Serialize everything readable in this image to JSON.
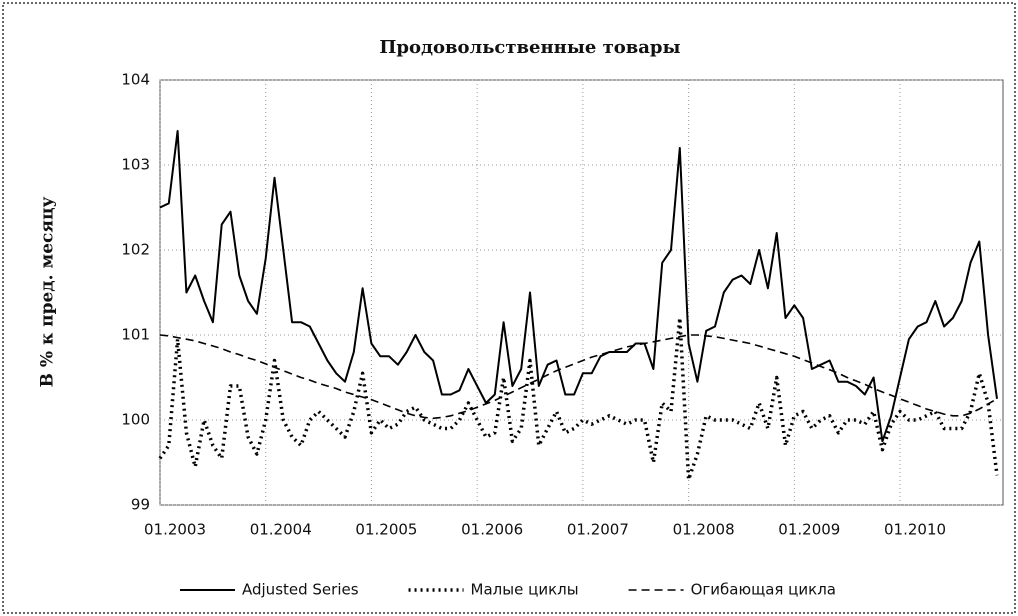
{
  "chart_data": {
    "type": "line",
    "title": "Продовольственные товары",
    "y_label": "В % к пред. месяцу",
    "categories": [
      "01.2003",
      null,
      null,
      null,
      null,
      null,
      null,
      null,
      null,
      null,
      null,
      null,
      "01.2004",
      null,
      null,
      null,
      null,
      null,
      null,
      null,
      null,
      null,
      null,
      null,
      "01.2005",
      null,
      null,
      null,
      null,
      null,
      null,
      null,
      null,
      null,
      null,
      null,
      "01.2006",
      null,
      null,
      null,
      null,
      null,
      null,
      null,
      null,
      null,
      null,
      null,
      "01.2007",
      null,
      null,
      null,
      null,
      null,
      null,
      null,
      null,
      null,
      null,
      null,
      "01.2008",
      null,
      null,
      null,
      null,
      null,
      null,
      null,
      null,
      null,
      null,
      null,
      "01.2009",
      null,
      null,
      null,
      null,
      null,
      null,
      null,
      null,
      null,
      null,
      null,
      "01.2010",
      null,
      null,
      null,
      null,
      null,
      null,
      null,
      null,
      null,
      null,
      null
    ],
    "series": [
      {
        "name": "Adjusted Series",
        "color": "#000000",
        "style": "solid",
        "values": [
          102.5,
          102.55,
          103.4,
          101.5,
          101.7,
          101.4,
          101.15,
          102.3,
          102.45,
          101.7,
          101.4,
          101.25,
          101.9,
          102.85,
          102.0,
          101.15,
          101.15,
          101.1,
          100.9,
          100.7,
          100.55,
          100.45,
          100.8,
          101.55,
          100.9,
          100.75,
          100.75,
          100.65,
          100.8,
          101.0,
          100.8,
          100.7,
          100.3,
          100.3,
          100.35,
          100.6,
          100.4,
          100.2,
          100.3,
          101.15,
          100.4,
          100.6,
          101.5,
          100.4,
          100.65,
          100.7,
          100.3,
          100.3,
          100.55,
          100.55,
          100.75,
          100.8,
          100.8,
          100.8,
          100.9,
          100.9,
          100.6,
          101.85,
          102.0,
          103.2,
          100.9,
          100.45,
          101.05,
          101.1,
          101.5,
          101.65,
          101.7,
          101.6,
          102.0,
          101.55,
          102.2,
          101.2,
          101.35,
          101.2,
          100.6,
          100.65,
          100.7,
          100.45,
          100.45,
          100.4,
          100.3,
          100.5,
          99.75,
          100.05,
          100.5,
          100.95,
          101.1,
          101.15,
          101.4,
          101.1,
          101.2,
          101.4,
          101.85,
          102.1,
          101.0,
          100.25
        ]
      },
      {
        "name": "Малые циклы",
        "color": "#000000",
        "style": "dotted",
        "values": [
          99.55,
          99.7,
          100.95,
          99.85,
          99.45,
          100.0,
          99.7,
          99.55,
          100.4,
          100.4,
          99.8,
          99.6,
          100.0,
          100.7,
          100.0,
          99.8,
          99.7,
          100.0,
          100.1,
          100.0,
          99.9,
          99.8,
          100.1,
          100.55,
          99.85,
          100.0,
          99.9,
          99.95,
          100.1,
          100.15,
          100.0,
          99.95,
          99.9,
          99.9,
          100.0,
          100.2,
          100.0,
          99.8,
          99.85,
          100.5,
          99.75,
          99.9,
          100.7,
          99.7,
          99.9,
          100.1,
          99.85,
          99.9,
          100.0,
          99.95,
          100.0,
          100.05,
          100.0,
          99.95,
          100.0,
          100.0,
          99.5,
          100.2,
          100.1,
          101.2,
          99.3,
          99.6,
          100.05,
          100.0,
          100.0,
          100.0,
          99.95,
          99.9,
          100.2,
          99.9,
          100.5,
          99.7,
          100.05,
          100.1,
          99.9,
          100.0,
          100.05,
          99.85,
          100.0,
          100.0,
          99.95,
          100.1,
          99.65,
          99.95,
          100.1,
          100.0,
          100.0,
          100.05,
          100.1,
          99.9,
          99.9,
          99.9,
          100.1,
          100.55,
          100.2,
          99.35
        ]
      },
      {
        "name": "Огибающая цикла",
        "color": "#000000",
        "style": "dashed",
        "values": [
          101.0,
          100.99,
          100.97,
          100.95,
          100.93,
          100.9,
          100.87,
          100.84,
          100.8,
          100.77,
          100.73,
          100.7,
          100.66,
          100.62,
          100.58,
          100.54,
          100.5,
          100.47,
          100.43,
          100.4,
          100.37,
          100.33,
          100.3,
          100.27,
          100.24,
          100.2,
          100.16,
          100.12,
          100.08,
          100.05,
          100.03,
          100.02,
          100.03,
          100.05,
          100.08,
          100.11,
          100.15,
          100.19,
          100.23,
          100.28,
          100.33,
          100.38,
          100.43,
          100.48,
          100.53,
          100.58,
          100.62,
          100.66,
          100.7,
          100.74,
          100.77,
          100.8,
          100.83,
          100.86,
          100.88,
          100.9,
          100.92,
          100.94,
          100.96,
          100.98,
          101.0,
          101.0,
          100.99,
          100.98,
          100.96,
          100.94,
          100.92,
          100.9,
          100.87,
          100.84,
          100.81,
          100.78,
          100.75,
          100.71,
          100.67,
          100.63,
          100.59,
          100.55,
          100.5,
          100.46,
          100.42,
          100.37,
          100.33,
          100.29,
          100.25,
          100.21,
          100.17,
          100.13,
          100.1,
          100.07,
          100.05,
          100.05,
          100.08,
          100.13,
          100.19,
          100.25
        ]
      }
    ],
    "ylim": [
      99,
      104
    ],
    "yticks": [
      99,
      100,
      101,
      102,
      103,
      104
    ],
    "grid": true,
    "legend": "bottom"
  }
}
